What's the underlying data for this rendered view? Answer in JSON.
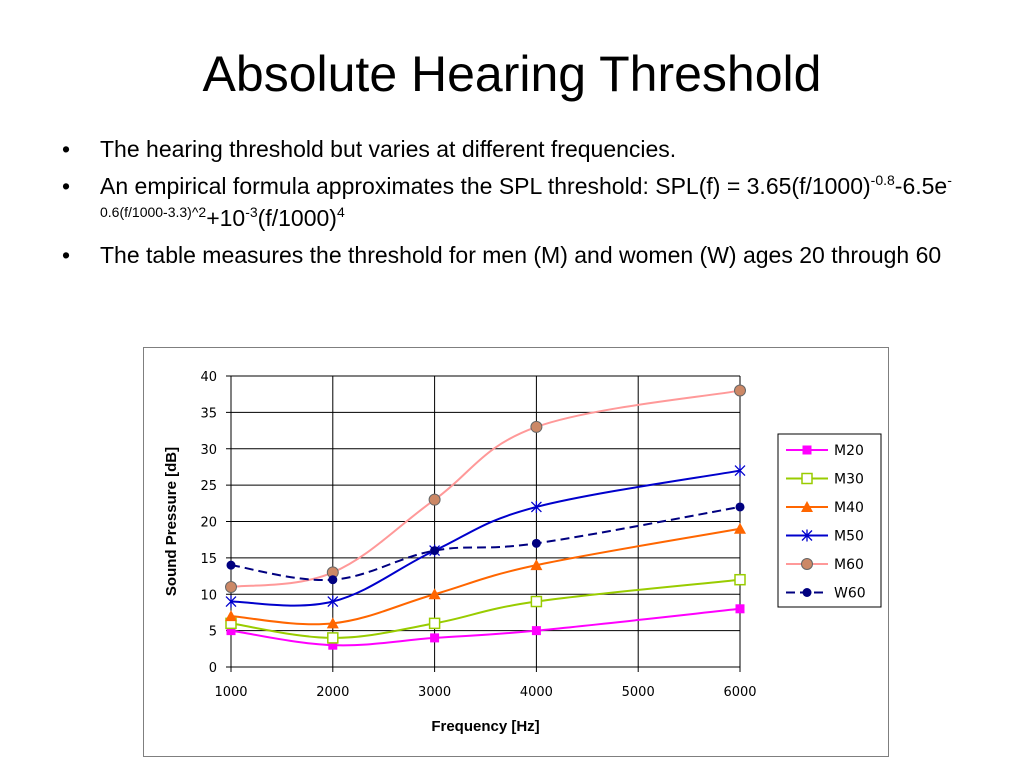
{
  "slide": {
    "title": "Absolute Hearing Threshold",
    "bullet1": "The hearing threshold but varies at different frequencies.",
    "bullet2": {
      "lead": "An empirical formula approximates the SPL threshold: SPL(f) = 3.65(f/1000)",
      "exp1": "-0.8",
      "mid1": "-6.5e",
      "exp2": "-0.6(f/1000-3.3)^2",
      "mid2": "+10",
      "exp3": "-3",
      "mid3": "(f/1000)",
      "exp4": "4"
    },
    "bullet3": "The table measures the threshold for men (M) and women (W) ages 20 through 60"
  },
  "chart_data": {
    "type": "line",
    "xlabel": "Frequency  [Hz]",
    "ylabel": "Sound Pressure [dB]",
    "x": [
      1000,
      2000,
      3000,
      4000,
      6000
    ],
    "xlim": [
      1000,
      6000
    ],
    "ylim": [
      0,
      40
    ],
    "xticks": [
      1000,
      2000,
      3000,
      4000,
      5000,
      6000
    ],
    "yticks": [
      0,
      5,
      10,
      15,
      20,
      25,
      30,
      35,
      40
    ],
    "grid": true,
    "legend_position": "right",
    "series": [
      {
        "name": "M20",
        "values": [
          5,
          3,
          4,
          5,
          8
        ],
        "color": "#ff00ff",
        "marker": "square-filled",
        "dash": false
      },
      {
        "name": "M30",
        "values": [
          6,
          4,
          6,
          9,
          12
        ],
        "color": "#99cc00",
        "marker": "square-open",
        "dash": false
      },
      {
        "name": "M40",
        "values": [
          7,
          6,
          10,
          14,
          19
        ],
        "color": "#ff6600",
        "marker": "triangle",
        "dash": false
      },
      {
        "name": "M50",
        "values": [
          9,
          9,
          16,
          22,
          27
        ],
        "color": "#0000cc",
        "marker": "star",
        "dash": false
      },
      {
        "name": "M60",
        "values": [
          11,
          13,
          23,
          33,
          38
        ],
        "color": "#ff9999",
        "marker": "circle-tan",
        "dash": false
      },
      {
        "name": "W60",
        "values": [
          14,
          12,
          16,
          17,
          22
        ],
        "color": "#000080",
        "marker": "circle-filled",
        "dash": true
      }
    ]
  }
}
